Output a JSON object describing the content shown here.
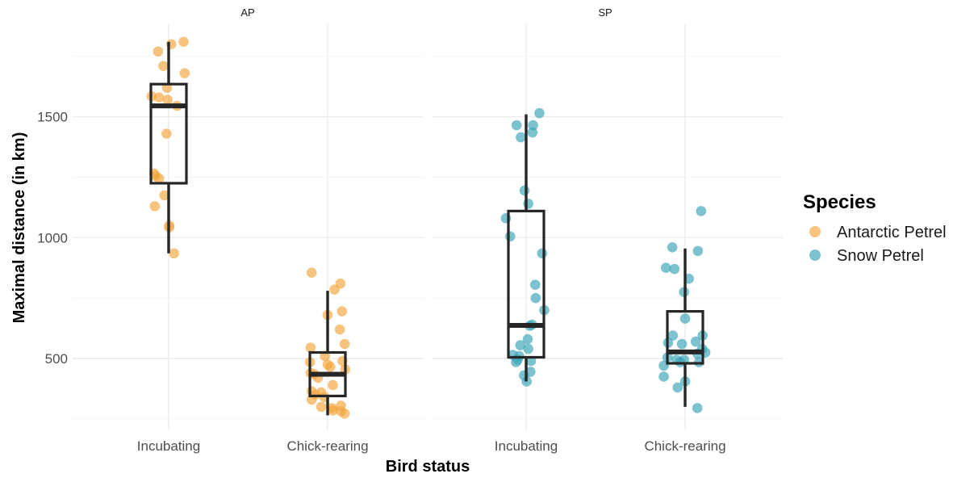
{
  "chart_data": {
    "type": "boxplot-jitter",
    "title": "",
    "xlabel": "Bird status",
    "ylabel": "Maximal distance (in km)",
    "ylim": [
      210,
      1860
    ],
    "y_ticks": [
      500,
      1000,
      1500
    ],
    "y_tick_labels": [
      "500",
      "1000",
      "1500"
    ],
    "grid": true,
    "legend_position": "right",
    "legend": {
      "title": "Species",
      "entries": [
        {
          "label": "Antarctic Petrel",
          "color": "#f2a53a"
        },
        {
          "label": "Snow Petrel",
          "color": "#35a2b6"
        }
      ]
    },
    "categories": [
      "Incubating",
      "Chick-rearing"
    ],
    "panels": [
      {
        "strip": "AP",
        "species": "Antarctic Petrel",
        "color": "#f2a53a",
        "boxes": [
          {
            "category": "Incubating",
            "whisker_low": 935,
            "q1": 1225,
            "median": 1545,
            "q3": 1635,
            "whisker_high": 1810
          },
          {
            "category": "Chick-rearing",
            "whisker_low": 265,
            "q1": 345,
            "median": 435,
            "q3": 525,
            "whisker_high": 780
          }
        ],
        "points": [
          {
            "category": "Incubating",
            "jitter": -0.2,
            "y": 1770
          },
          {
            "category": "Incubating",
            "jitter": 0.05,
            "y": 1800
          },
          {
            "category": "Incubating",
            "jitter": 0.28,
            "y": 1810
          },
          {
            "category": "Incubating",
            "jitter": -0.1,
            "y": 1710
          },
          {
            "category": "Incubating",
            "jitter": 0.3,
            "y": 1680
          },
          {
            "category": "Incubating",
            "jitter": -0.03,
            "y": 1620
          },
          {
            "category": "Incubating",
            "jitter": -0.32,
            "y": 1585
          },
          {
            "category": "Incubating",
            "jitter": -0.18,
            "y": 1580
          },
          {
            "category": "Incubating",
            "jitter": -0.02,
            "y": 1570
          },
          {
            "category": "Incubating",
            "jitter": 0.16,
            "y": 1545
          },
          {
            "category": "Incubating",
            "jitter": -0.04,
            "y": 1430
          },
          {
            "category": "Incubating",
            "jitter": -0.27,
            "y": 1265
          },
          {
            "category": "Incubating",
            "jitter": -0.25,
            "y": 1255
          },
          {
            "category": "Incubating",
            "jitter": -0.18,
            "y": 1245
          },
          {
            "category": "Incubating",
            "jitter": -0.08,
            "y": 1175
          },
          {
            "category": "Incubating",
            "jitter": -0.26,
            "y": 1130
          },
          {
            "category": "Incubating",
            "jitter": 0.01,
            "y": 1050
          },
          {
            "category": "Incubating",
            "jitter": 0.01,
            "y": 1042
          },
          {
            "category": "Incubating",
            "jitter": 0.1,
            "y": 935
          },
          {
            "category": "Chick-rearing",
            "jitter": -0.3,
            "y": 855
          },
          {
            "category": "Chick-rearing",
            "jitter": 0.24,
            "y": 810
          },
          {
            "category": "Chick-rearing",
            "jitter": 0.13,
            "y": 785
          },
          {
            "category": "Chick-rearing",
            "jitter": 0.27,
            "y": 695
          },
          {
            "category": "Chick-rearing",
            "jitter": 0.0,
            "y": 680
          },
          {
            "category": "Chick-rearing",
            "jitter": 0.23,
            "y": 620
          },
          {
            "category": "Chick-rearing",
            "jitter": 0.32,
            "y": 560
          },
          {
            "category": "Chick-rearing",
            "jitter": -0.32,
            "y": 545
          },
          {
            "category": "Chick-rearing",
            "jitter": -0.05,
            "y": 510
          },
          {
            "category": "Chick-rearing",
            "jitter": 0.28,
            "y": 490
          },
          {
            "category": "Chick-rearing",
            "jitter": -0.33,
            "y": 485
          },
          {
            "category": "Chick-rearing",
            "jitter": 0.0,
            "y": 475
          },
          {
            "category": "Chick-rearing",
            "jitter": 0.05,
            "y": 465
          },
          {
            "category": "Chick-rearing",
            "jitter": 0.33,
            "y": 455
          },
          {
            "category": "Chick-rearing",
            "jitter": -0.32,
            "y": 440
          },
          {
            "category": "Chick-rearing",
            "jitter": -0.25,
            "y": 435
          },
          {
            "category": "Chick-rearing",
            "jitter": -0.18,
            "y": 420
          },
          {
            "category": "Chick-rearing",
            "jitter": 0.1,
            "y": 390
          },
          {
            "category": "Chick-rearing",
            "jitter": -0.3,
            "y": 365
          },
          {
            "category": "Chick-rearing",
            "jitter": -0.12,
            "y": 360
          },
          {
            "category": "Chick-rearing",
            "jitter": -0.23,
            "y": 350
          },
          {
            "category": "Chick-rearing",
            "jitter": -0.06,
            "y": 340
          },
          {
            "category": "Chick-rearing",
            "jitter": -0.3,
            "y": 330
          },
          {
            "category": "Chick-rearing",
            "jitter": 0.25,
            "y": 305
          },
          {
            "category": "Chick-rearing",
            "jitter": -0.12,
            "y": 300
          },
          {
            "category": "Chick-rearing",
            "jitter": 0.08,
            "y": 295
          },
          {
            "category": "Chick-rearing",
            "jitter": 0.1,
            "y": 285
          },
          {
            "category": "Chick-rearing",
            "jitter": 0.25,
            "y": 282
          },
          {
            "category": "Chick-rearing",
            "jitter": 0.32,
            "y": 272
          }
        ]
      },
      {
        "strip": "SP",
        "species": "Snow Petrel",
        "color": "#35a2b6",
        "boxes": [
          {
            "category": "Incubating",
            "whisker_low": 405,
            "q1": 505,
            "median": 637,
            "q3": 1110,
            "whisker_high": 1510
          },
          {
            "category": "Chick-rearing",
            "whisker_low": 300,
            "q1": 480,
            "median": 527,
            "q3": 695,
            "whisker_high": 955
          }
        ],
        "points": [
          {
            "category": "Incubating",
            "jitter": 0.25,
            "y": 1515
          },
          {
            "category": "Incubating",
            "jitter": -0.18,
            "y": 1465
          },
          {
            "category": "Incubating",
            "jitter": 0.13,
            "y": 1465
          },
          {
            "category": "Incubating",
            "jitter": 0.12,
            "y": 1435
          },
          {
            "category": "Incubating",
            "jitter": -0.1,
            "y": 1415
          },
          {
            "category": "Incubating",
            "jitter": -0.03,
            "y": 1195
          },
          {
            "category": "Incubating",
            "jitter": 0.04,
            "y": 1140
          },
          {
            "category": "Incubating",
            "jitter": -0.38,
            "y": 1080
          },
          {
            "category": "Incubating",
            "jitter": -0.3,
            "y": 1005
          },
          {
            "category": "Incubating",
            "jitter": 0.3,
            "y": 935
          },
          {
            "category": "Incubating",
            "jitter": 0.17,
            "y": 805
          },
          {
            "category": "Incubating",
            "jitter": 0.18,
            "y": 750
          },
          {
            "category": "Incubating",
            "jitter": 0.34,
            "y": 700
          },
          {
            "category": "Incubating",
            "jitter": 0.11,
            "y": 640
          },
          {
            "category": "Incubating",
            "jitter": 0.07,
            "y": 635
          },
          {
            "category": "Incubating",
            "jitter": 0.03,
            "y": 580
          },
          {
            "category": "Incubating",
            "jitter": -0.11,
            "y": 555
          },
          {
            "category": "Incubating",
            "jitter": 0.04,
            "y": 540
          },
          {
            "category": "Incubating",
            "jitter": -0.25,
            "y": 515
          },
          {
            "category": "Incubating",
            "jitter": -0.13,
            "y": 510
          },
          {
            "category": "Incubating",
            "jitter": -0.16,
            "y": 495
          },
          {
            "category": "Incubating",
            "jitter": 0.09,
            "y": 490
          },
          {
            "category": "Incubating",
            "jitter": -0.19,
            "y": 485
          },
          {
            "category": "Incubating",
            "jitter": 0.08,
            "y": 445
          },
          {
            "category": "Incubating",
            "jitter": -0.04,
            "y": 430
          },
          {
            "category": "Incubating",
            "jitter": 0.01,
            "y": 405
          },
          {
            "category": "Chick-rearing",
            "jitter": 0.3,
            "y": 1110
          },
          {
            "category": "Chick-rearing",
            "jitter": -0.24,
            "y": 960
          },
          {
            "category": "Chick-rearing",
            "jitter": 0.24,
            "y": 945
          },
          {
            "category": "Chick-rearing",
            "jitter": -0.36,
            "y": 875
          },
          {
            "category": "Chick-rearing",
            "jitter": -0.2,
            "y": 870
          },
          {
            "category": "Chick-rearing",
            "jitter": 0.07,
            "y": 830
          },
          {
            "category": "Chick-rearing",
            "jitter": -0.02,
            "y": 775
          },
          {
            "category": "Chick-rearing",
            "jitter": 0.0,
            "y": 665
          },
          {
            "category": "Chick-rearing",
            "jitter": 0.33,
            "y": 595
          },
          {
            "category": "Chick-rearing",
            "jitter": -0.23,
            "y": 595
          },
          {
            "category": "Chick-rearing",
            "jitter": 0.2,
            "y": 570
          },
          {
            "category": "Chick-rearing",
            "jitter": -0.32,
            "y": 565
          },
          {
            "category": "Chick-rearing",
            "jitter": -0.06,
            "y": 560
          },
          {
            "category": "Chick-rearing",
            "jitter": 0.32,
            "y": 540
          },
          {
            "category": "Chick-rearing",
            "jitter": 0.38,
            "y": 525
          },
          {
            "category": "Chick-rearing",
            "jitter": 0.23,
            "y": 520
          },
          {
            "category": "Chick-rearing",
            "jitter": -0.33,
            "y": 505
          },
          {
            "category": "Chick-rearing",
            "jitter": -0.16,
            "y": 495
          },
          {
            "category": "Chick-rearing",
            "jitter": -0.02,
            "y": 495
          },
          {
            "category": "Chick-rearing",
            "jitter": -0.09,
            "y": 485
          },
          {
            "category": "Chick-rearing",
            "jitter": 0.26,
            "y": 485
          },
          {
            "category": "Chick-rearing",
            "jitter": -0.4,
            "y": 470
          },
          {
            "category": "Chick-rearing",
            "jitter": -0.4,
            "y": 425
          },
          {
            "category": "Chick-rearing",
            "jitter": 0.0,
            "y": 405
          },
          {
            "category": "Chick-rearing",
            "jitter": -0.14,
            "y": 380
          },
          {
            "category": "Chick-rearing",
            "jitter": 0.23,
            "y": 295
          }
        ]
      }
    ]
  }
}
